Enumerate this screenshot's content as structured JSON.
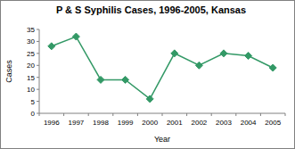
{
  "chart_data": {
    "type": "line",
    "title": "P & S Syphilis Cases, 1996-2005, Kansas",
    "x_label": "Year",
    "y_label": "Cases",
    "categories": [
      "1996",
      "1997",
      "1998",
      "1999",
      "2000",
      "2001",
      "2002",
      "2003",
      "2004",
      "2005"
    ],
    "values": [
      28,
      32,
      14,
      14,
      6,
      25,
      20,
      25,
      24,
      19
    ],
    "color": "#339966",
    "marker": "diamond",
    "ylim": [
      0,
      35
    ],
    "yticks": [
      0,
      5,
      10,
      15,
      20,
      25,
      30,
      35
    ],
    "grid": false
  }
}
